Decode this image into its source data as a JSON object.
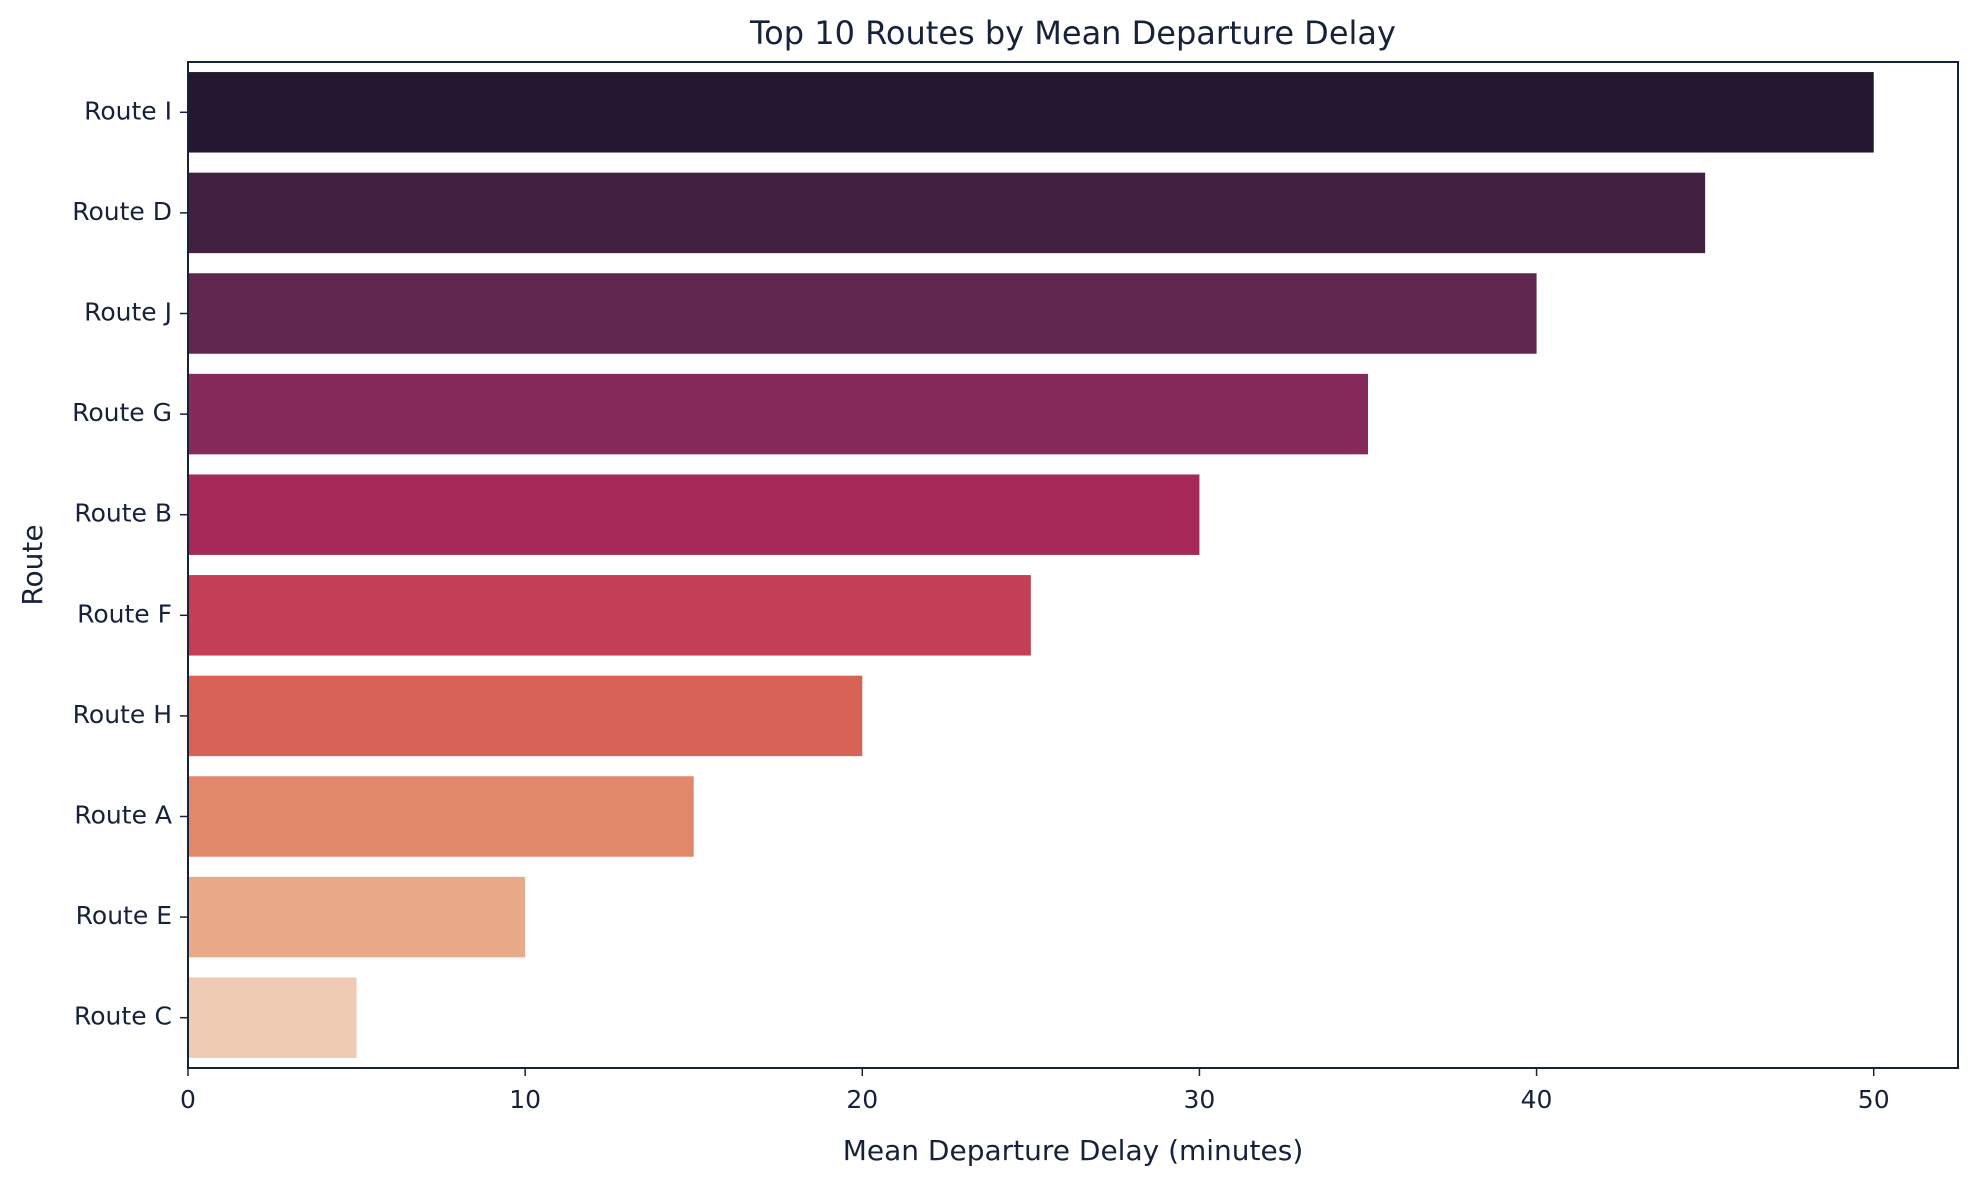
{
  "chart_data": {
    "type": "bar",
    "orientation": "horizontal",
    "title": "Top 10 Routes by Mean Departure Delay",
    "xlabel": "Mean Departure Delay (minutes)",
    "ylabel": "Route",
    "categories": [
      "Route I",
      "Route D",
      "Route J",
      "Route G",
      "Route B",
      "Route F",
      "Route H",
      "Route A",
      "Route E",
      "Route C"
    ],
    "values": [
      50,
      45,
      40,
      35,
      30,
      25,
      20,
      15,
      10,
      5
    ],
    "colors": [
      "#241730",
      "#42203f",
      "#61264f",
      "#852a5a",
      "#a52a59",
      "#c43e55",
      "#d86256",
      "#e1876a",
      "#e8aa88",
      "#efcbb3"
    ],
    "xlim": [
      0,
      52.5
    ],
    "xticks": [
      0,
      10,
      20,
      30,
      40,
      50
    ],
    "grid": false,
    "legend": "none"
  }
}
